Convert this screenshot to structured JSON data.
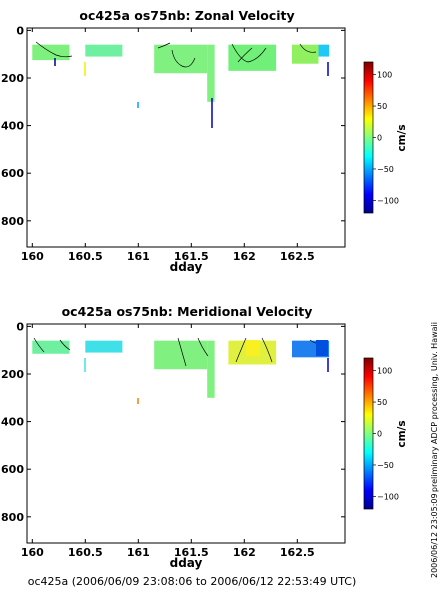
{
  "chart_data": [
    {
      "type": "heatmap",
      "title": "oc425a os75nb: Zonal Velocity",
      "xlabel": "dday",
      "ylabel": "",
      "xlim": [
        159.95,
        162.95
      ],
      "ylim": [
        910,
        -10
      ],
      "y_inverted": true,
      "x_ticks": [
        160,
        160.5,
        161,
        161.5,
        162,
        162.5
      ],
      "x_tick_labels": [
        "160",
        "160.5",
        "161",
        "161.5",
        "162",
        "162.5"
      ],
      "y_ticks": [
        0,
        200,
        400,
        600,
        800
      ],
      "y_tick_labels": [
        "0",
        "200",
        "400",
        "600",
        "800"
      ],
      "colorbar": {
        "label": "cm/s",
        "range": [
          -120,
          120
        ],
        "ticks": [
          100,
          50,
          0,
          -50,
          -100
        ],
        "tick_labels": [
          "100",
          "50",
          "0",
          "−50",
          "−100"
        ]
      },
      "segments": [
        {
          "x_start": 160.0,
          "x_end": 160.35,
          "top": 60,
          "bottom": 125,
          "color": "#7df07d"
        },
        {
          "x_start": 160.5,
          "x_end": 160.85,
          "top": 60,
          "bottom": 110,
          "color": "#6ef0a0"
        },
        {
          "x_start": 161.15,
          "x_end": 161.65,
          "top": 60,
          "bottom": 180,
          "color": "#80f080"
        },
        {
          "x_start": 161.65,
          "x_end": 161.72,
          "top": 60,
          "bottom": 300,
          "color": "#80f080"
        },
        {
          "x_start": 161.85,
          "x_end": 162.3,
          "top": 60,
          "bottom": 170,
          "color": "#70f078"
        },
        {
          "x_start": 162.45,
          "x_end": 162.7,
          "top": 60,
          "bottom": 140,
          "color": "#90f060"
        },
        {
          "x_start": 162.7,
          "x_end": 162.8,
          "top": 60,
          "bottom": 110,
          "color": "#20c8f8"
        }
      ]
    },
    {
      "type": "heatmap",
      "title": "oc425a os75nb: Meridional Velocity",
      "xlabel": "dday",
      "ylabel": "",
      "xlim": [
        159.95,
        162.95
      ],
      "ylim": [
        910,
        -10
      ],
      "y_inverted": true,
      "x_ticks": [
        160,
        160.5,
        161,
        161.5,
        162,
        162.5
      ],
      "x_tick_labels": [
        "160",
        "160.5",
        "161",
        "161.5",
        "162",
        "162.5"
      ],
      "y_ticks": [
        0,
        200,
        400,
        600,
        800
      ],
      "y_tick_labels": [
        "0",
        "200",
        "400",
        "600",
        "800"
      ],
      "colorbar": {
        "label": "cm/s",
        "range": [
          -120,
          120
        ],
        "ticks": [
          100,
          50,
          0,
          -50,
          -100
        ],
        "tick_labels": [
          "100",
          "50",
          "0",
          "−50",
          "−100"
        ]
      },
      "segments": [
        {
          "x_start": 160.0,
          "x_end": 160.35,
          "top": 60,
          "bottom": 115,
          "color": "#6ef0a0"
        },
        {
          "x_start": 160.5,
          "x_end": 160.85,
          "top": 60,
          "bottom": 110,
          "color": "#40e0e8"
        },
        {
          "x_start": 161.15,
          "x_end": 161.65,
          "top": 60,
          "bottom": 180,
          "color": "#80f080"
        },
        {
          "x_start": 161.65,
          "x_end": 161.72,
          "top": 60,
          "bottom": 300,
          "color": "#80f080"
        },
        {
          "x_start": 161.85,
          "x_end": 162.3,
          "top": 60,
          "bottom": 160,
          "color": "#e0f040"
        },
        {
          "x_start": 162.45,
          "x_end": 162.8,
          "top": 60,
          "bottom": 130,
          "color": "#2080f0"
        }
      ]
    }
  ],
  "footer": "oc425a (2006/06/09 23:08:06 to 2006/06/12 22:53:49 UTC)",
  "side_note": "preliminary ADCP processing,   Univ. Hawaii",
  "side_timestamp": "2006/06/12 23:05:09"
}
